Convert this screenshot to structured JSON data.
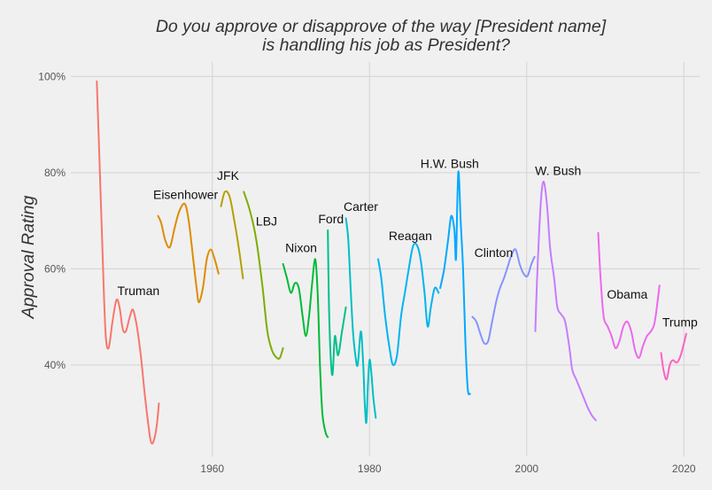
{
  "chart_data": {
    "type": "line",
    "title_line1": "Do you approve or disapprove of the way [President name]",
    "title_line2": "is handling his job as President?",
    "xlabel": "",
    "ylabel": "Approval Rating",
    "xlim": [
      1942,
      2022
    ],
    "ylim": [
      21,
      103
    ],
    "x_ticks": [
      1960,
      1980,
      2000,
      2020
    ],
    "x_tick_labels": [
      "1960",
      "1980",
      "2000",
      "2020"
    ],
    "y_ticks": [
      40,
      60,
      80,
      100
    ],
    "y_tick_labels": [
      "40%",
      "60%",
      "80%",
      "100%"
    ],
    "grid": true,
    "legend": "none",
    "series": [
      {
        "name": "Truman",
        "color": "#F8766D",
        "label_pos": [
          1950.6,
          54.5
        ],
        "points": [
          [
            1945.3,
            99
          ],
          [
            1945.6,
            85
          ],
          [
            1946.0,
            65
          ],
          [
            1946.4,
            47
          ],
          [
            1946.8,
            43.5
          ],
          [
            1947.3,
            49
          ],
          [
            1947.8,
            53.5
          ],
          [
            1948.2,
            52
          ],
          [
            1948.6,
            47.5
          ],
          [
            1949.0,
            47
          ],
          [
            1949.5,
            50
          ],
          [
            1949.9,
            51.5
          ],
          [
            1950.4,
            48
          ],
          [
            1950.9,
            42
          ],
          [
            1951.4,
            34
          ],
          [
            1951.9,
            27
          ],
          [
            1952.2,
            24
          ],
          [
            1952.5,
            24
          ],
          [
            1952.9,
            27
          ],
          [
            1953.2,
            32
          ]
        ]
      },
      {
        "name": "Eisenhower",
        "color": "#DE8C00",
        "label_pos": [
          1956.6,
          74.5
        ],
        "points": [
          [
            1953.1,
            71
          ],
          [
            1953.5,
            69.5
          ],
          [
            1954.0,
            66
          ],
          [
            1954.6,
            64.5
          ],
          [
            1955.2,
            68.5
          ],
          [
            1955.8,
            72
          ],
          [
            1956.5,
            73.5
          ],
          [
            1957.0,
            70
          ],
          [
            1957.5,
            63
          ],
          [
            1958.0,
            56
          ],
          [
            1958.3,
            53
          ],
          [
            1958.8,
            56
          ],
          [
            1959.3,
            62
          ],
          [
            1959.8,
            64
          ],
          [
            1960.3,
            62
          ],
          [
            1960.8,
            59
          ]
        ]
      },
      {
        "name": "JFK",
        "color": "#B79F00",
        "label_pos": [
          1962.0,
          78.5
        ],
        "points": [
          [
            1961.1,
            73
          ],
          [
            1961.6,
            76
          ],
          [
            1962.2,
            75
          ],
          [
            1962.8,
            70
          ],
          [
            1963.4,
            64
          ],
          [
            1963.9,
            58
          ]
        ]
      },
      {
        "name": "LBJ",
        "color": "#7CAE00",
        "label_pos": [
          1966.9,
          69.0
        ],
        "points": [
          [
            1964.0,
            76
          ],
          [
            1964.8,
            72
          ],
          [
            1965.6,
            66
          ],
          [
            1966.4,
            56
          ],
          [
            1967.0,
            47
          ],
          [
            1967.6,
            43
          ],
          [
            1968.2,
            41.5
          ],
          [
            1968.6,
            41.5
          ],
          [
            1969.0,
            43.5
          ]
        ]
      },
      {
        "name": "Nixon",
        "color": "#00BA38",
        "label_pos": [
          1971.3,
          63.5
        ],
        "points": [
          [
            1969.0,
            61
          ],
          [
            1969.5,
            58
          ],
          [
            1970.0,
            55
          ],
          [
            1970.5,
            57
          ],
          [
            1971.0,
            56
          ],
          [
            1971.5,
            50
          ],
          [
            1971.9,
            46
          ],
          [
            1972.3,
            50
          ],
          [
            1972.7,
            57
          ],
          [
            1973.1,
            62
          ],
          [
            1973.4,
            55
          ],
          [
            1973.7,
            40
          ],
          [
            1974.0,
            30
          ],
          [
            1974.4,
            26
          ],
          [
            1974.7,
            25
          ]
        ]
      },
      {
        "name": "Ford",
        "color": "#00C08B",
        "label_pos": [
          1975.1,
          69.5
        ],
        "points": [
          [
            1974.7,
            68
          ],
          [
            1974.85,
            52
          ],
          [
            1975.05,
            42
          ],
          [
            1975.3,
            38
          ],
          [
            1975.6,
            46
          ],
          [
            1976.0,
            42
          ],
          [
            1976.5,
            47
          ],
          [
            1977.0,
            52
          ]
        ]
      },
      {
        "name": "Carter",
        "color": "#00BFC4",
        "label_pos": [
          1978.9,
          72.0
        ],
        "points": [
          [
            1977.0,
            70.5
          ],
          [
            1977.3,
            66
          ],
          [
            1977.6,
            56
          ],
          [
            1977.9,
            47
          ],
          [
            1978.2,
            42
          ],
          [
            1978.5,
            40
          ],
          [
            1978.9,
            47
          ],
          [
            1979.2,
            40
          ],
          [
            1979.4,
            32
          ],
          [
            1979.6,
            28
          ],
          [
            1979.8,
            36
          ],
          [
            1980.0,
            41
          ],
          [
            1980.2,
            39
          ],
          [
            1980.5,
            33
          ],
          [
            1980.8,
            29
          ]
        ]
      },
      {
        "name": "Reagan",
        "color": "#00B4F0",
        "label_pos": [
          1985.2,
          66.0
        ],
        "points": [
          [
            1981.1,
            62
          ],
          [
            1981.5,
            58
          ],
          [
            1982.0,
            50
          ],
          [
            1982.6,
            43
          ],
          [
            1983.0,
            40
          ],
          [
            1983.5,
            42
          ],
          [
            1984.0,
            50
          ],
          [
            1984.5,
            55
          ],
          [
            1985.0,
            60
          ],
          [
            1985.5,
            64.5
          ],
          [
            1986.0,
            65
          ],
          [
            1986.5,
            62
          ],
          [
            1987.0,
            55
          ],
          [
            1987.4,
            48
          ],
          [
            1987.8,
            52
          ],
          [
            1988.3,
            56
          ],
          [
            1988.8,
            55
          ]
        ]
      },
      {
        "name": "H.W. Bush",
        "color": "#00A9FF",
        "label_pos": [
          1990.2,
          81.0
        ],
        "points": [
          [
            1989.0,
            56
          ],
          [
            1989.5,
            60
          ],
          [
            1990.0,
            66
          ],
          [
            1990.4,
            71
          ],
          [
            1990.8,
            68
          ],
          [
            1991.0,
            62
          ],
          [
            1991.2,
            76
          ],
          [
            1991.35,
            80
          ],
          [
            1991.6,
            70
          ],
          [
            1991.9,
            60
          ],
          [
            1992.2,
            45
          ],
          [
            1992.5,
            35
          ],
          [
            1992.8,
            34
          ]
        ]
      },
      {
        "name": "Clinton",
        "color": "#8494FF",
        "label_pos": [
          1995.8,
          62.5
        ],
        "points": [
          [
            1993.1,
            50
          ],
          [
            1993.6,
            49
          ],
          [
            1994.1,
            46.5
          ],
          [
            1994.6,
            44.5
          ],
          [
            1995.1,
            45
          ],
          [
            1995.6,
            49
          ],
          [
            1996.1,
            53
          ],
          [
            1996.6,
            56
          ],
          [
            1997.1,
            58
          ],
          [
            1997.6,
            60.5
          ],
          [
            1998.1,
            63
          ],
          [
            1998.6,
            64
          ],
          [
            1999.1,
            61
          ],
          [
            1999.6,
            59
          ],
          [
            2000.1,
            58.5
          ],
          [
            2000.6,
            61
          ],
          [
            2001.0,
            62.5
          ]
        ]
      },
      {
        "name": "W. Bush",
        "color": "#C77CFF",
        "label_pos": [
          2004.0,
          79.5
        ],
        "points": [
          [
            2001.1,
            47
          ],
          [
            2001.3,
            57
          ],
          [
            2001.6,
            68
          ],
          [
            2001.9,
            76
          ],
          [
            2002.2,
            78
          ],
          [
            2002.6,
            73
          ],
          [
            2003.0,
            64
          ],
          [
            2003.5,
            58
          ],
          [
            2003.9,
            52
          ],
          [
            2004.4,
            50.5
          ],
          [
            2004.9,
            49
          ],
          [
            2005.4,
            44
          ],
          [
            2005.8,
            39
          ],
          [
            2006.3,
            37
          ],
          [
            2006.8,
            35
          ],
          [
            2007.3,
            33
          ],
          [
            2007.8,
            31
          ],
          [
            2008.3,
            29.5
          ],
          [
            2008.8,
            28.5
          ]
        ]
      },
      {
        "name": "Obama",
        "color": "#ED68ED",
        "label_pos": [
          2012.8,
          53.8
        ],
        "points": [
          [
            2009.1,
            67.5
          ],
          [
            2009.4,
            58
          ],
          [
            2009.8,
            50
          ],
          [
            2010.3,
            48
          ],
          [
            2010.8,
            46
          ],
          [
            2011.3,
            43.5
          ],
          [
            2011.8,
            45
          ],
          [
            2012.3,
            48
          ],
          [
            2012.8,
            49
          ],
          [
            2013.3,
            47
          ],
          [
            2013.8,
            43
          ],
          [
            2014.3,
            41.5
          ],
          [
            2014.8,
            44
          ],
          [
            2015.3,
            46
          ],
          [
            2015.8,
            47
          ],
          [
            2016.3,
            49
          ],
          [
            2016.9,
            56.5
          ]
        ]
      },
      {
        "name": "Trump",
        "color": "#FF61C3",
        "label_pos": [
          2019.5,
          48.0
        ],
        "points": [
          [
            2017.1,
            42.5
          ],
          [
            2017.4,
            39
          ],
          [
            2017.8,
            37
          ],
          [
            2018.2,
            40
          ],
          [
            2018.6,
            41
          ],
          [
            2019.1,
            40.5
          ],
          [
            2019.6,
            42
          ],
          [
            2020.0,
            44.5
          ],
          [
            2020.3,
            46.5
          ]
        ]
      }
    ]
  }
}
